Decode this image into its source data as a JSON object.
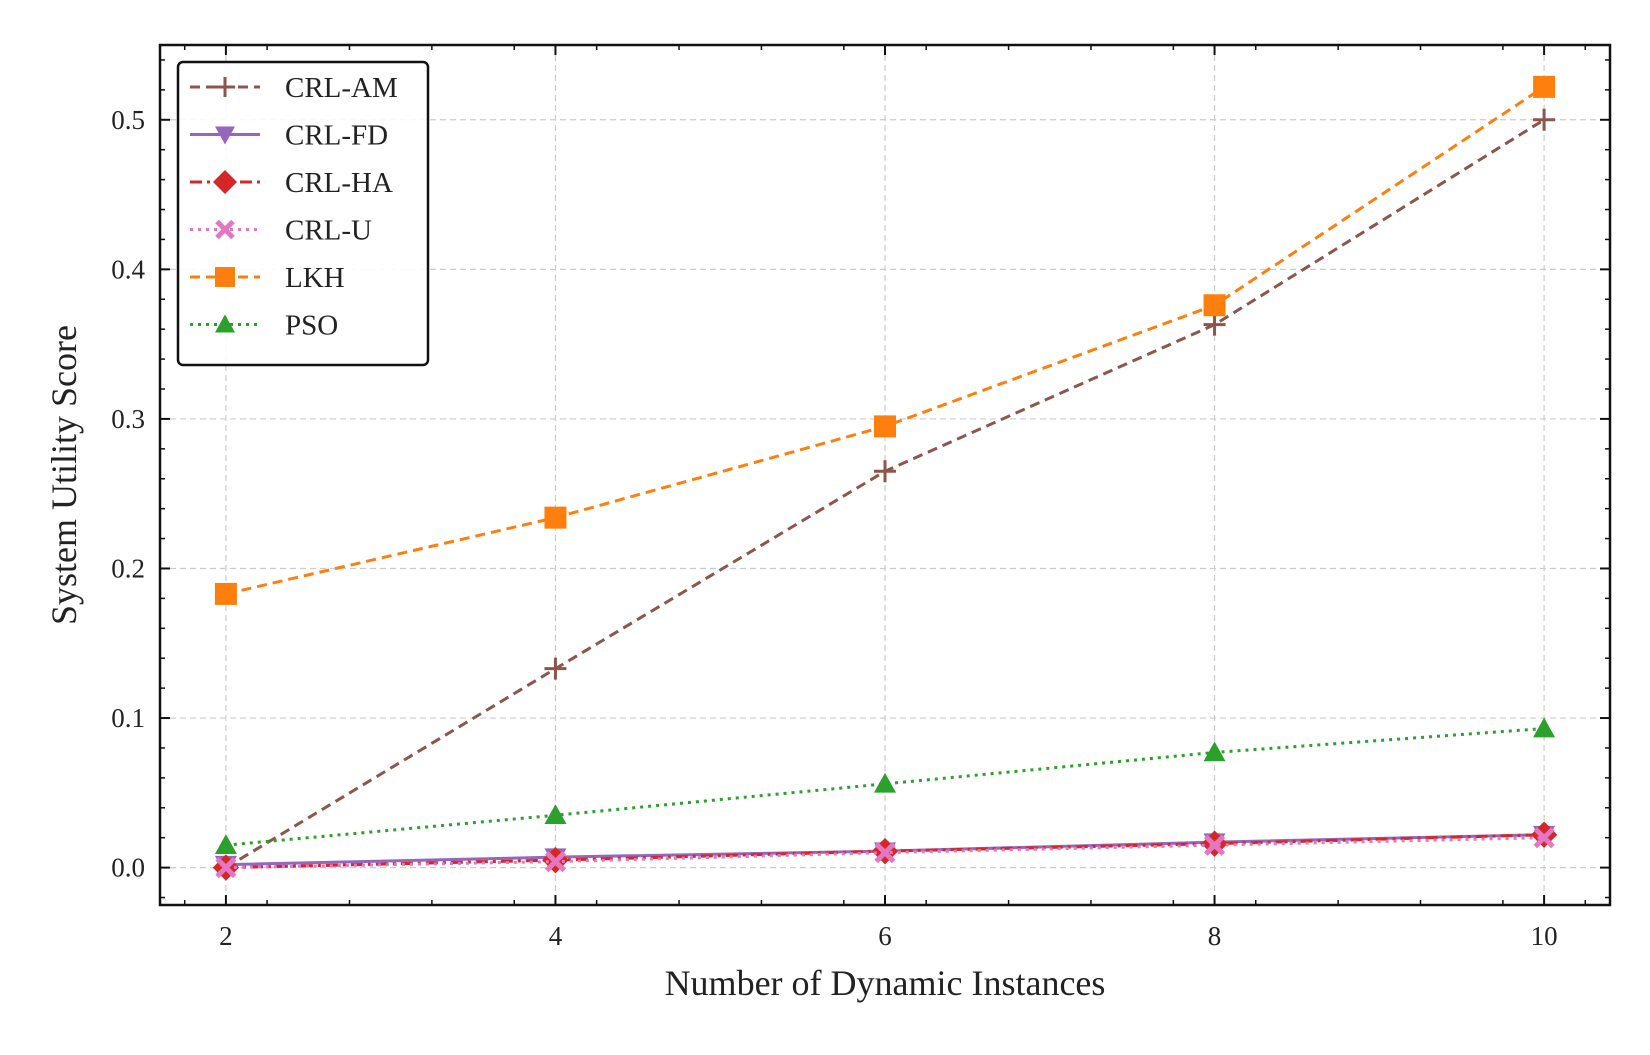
{
  "chart_data": {
    "type": "line",
    "title": "",
    "xlabel": "Number of Dynamic Instances",
    "ylabel": "System Utility Score",
    "x": [
      2,
      4,
      6,
      8,
      10
    ],
    "xlim": [
      1.6,
      10.4
    ],
    "ylim": [
      -0.025,
      0.55
    ],
    "xticks": [
      2,
      4,
      6,
      8,
      10
    ],
    "yticks": [
      0.0,
      0.1,
      0.2,
      0.3,
      0.4,
      0.5
    ],
    "xtick_labels": [
      "2",
      "4",
      "6",
      "8",
      "10"
    ],
    "ytick_labels": [
      "0.0",
      "0.1",
      "0.2",
      "0.3",
      "0.4",
      "0.5"
    ],
    "grid": true,
    "legend_position": "top-left",
    "series": [
      {
        "name": "CRL-AM",
        "values": [
          0.0,
          0.133,
          0.265,
          0.363,
          0.5
        ],
        "color": "#8c564b",
        "line_style": "dashed",
        "marker": "plus"
      },
      {
        "name": "CRL-FD",
        "values": [
          0.002,
          0.007,
          0.011,
          0.017,
          0.022
        ],
        "color": "#9467bd",
        "line_style": "solid",
        "marker": "triangle-down"
      },
      {
        "name": "CRL-HA",
        "values": [
          0.0,
          0.005,
          0.011,
          0.016,
          0.022
        ],
        "color": "#d62728",
        "line_style": "dashdot",
        "marker": "diamond"
      },
      {
        "name": "CRL-U",
        "values": [
          0.0,
          0.004,
          0.01,
          0.015,
          0.02
        ],
        "color": "#e377c2",
        "line_style": "dotted",
        "marker": "x"
      },
      {
        "name": "LKH",
        "values": [
          0.183,
          0.234,
          0.295,
          0.376,
          0.522
        ],
        "color": "#ff7f0e",
        "line_style": "dashed",
        "marker": "square"
      },
      {
        "name": "PSO",
        "values": [
          0.015,
          0.035,
          0.056,
          0.077,
          0.093
        ],
        "color": "#2ca02c",
        "line_style": "dotted",
        "marker": "triangle-up"
      }
    ]
  }
}
